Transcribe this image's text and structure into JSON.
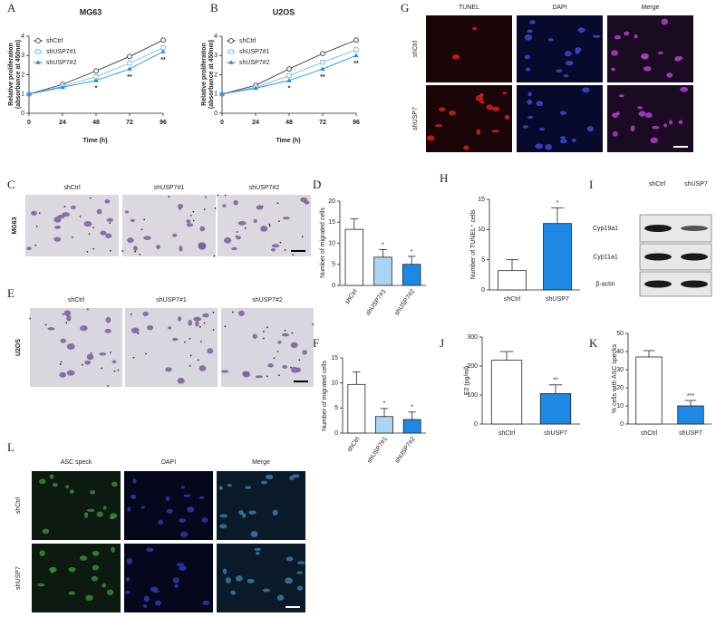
{
  "panel_letters": [
    "A",
    "B",
    "C",
    "D",
    "E",
    "F",
    "G",
    "H",
    "I",
    "J",
    "K",
    "L"
  ],
  "chart_data": [
    {
      "type": "line",
      "title": "MG63",
      "x": [
        0,
        24,
        48,
        72,
        96
      ],
      "xlim": [
        0,
        96
      ],
      "xticks": [
        0,
        24,
        48,
        72,
        96
      ],
      "ylim": [
        0,
        4
      ],
      "yticks": [
        0,
        1,
        2,
        3,
        4
      ],
      "x_label": "Time (h)",
      "y_label": [
        "Relative proliferation",
        "(absorbance at 450nm)"
      ],
      "series": [
        {
          "name": "shCtrl",
          "color": "#333333",
          "marker": "circle-open",
          "values": [
            1.0,
            1.5,
            2.2,
            2.95,
            3.8
          ]
        },
        {
          "name": "shUSP7#1",
          "color": "#7fb9e6",
          "marker": "square-open",
          "values": [
            1.0,
            1.4,
            1.9,
            2.6,
            3.4
          ]
        },
        {
          "name": "shUSP7#2",
          "color": "#1e88e5",
          "marker": "triangle",
          "values": [
            1.0,
            1.35,
            1.7,
            2.3,
            3.2
          ]
        }
      ],
      "significance": [
        null,
        null,
        "*",
        "**",
        "**"
      ]
    },
    {
      "type": "line",
      "title": "U2OS",
      "x": [
        0,
        24,
        48,
        72,
        96
      ],
      "xlim": [
        0,
        96
      ],
      "xticks": [
        0,
        24,
        48,
        72,
        96
      ],
      "ylim": [
        0,
        4
      ],
      "yticks": [
        0,
        1,
        2,
        3,
        4
      ],
      "x_label": "Time (h)",
      "y_label": [
        "Relative proliferation",
        "(absorbance at 450nm)"
      ],
      "series": [
        {
          "name": "shCtrl",
          "color": "#333333",
          "marker": "circle-open",
          "values": [
            1.0,
            1.45,
            2.3,
            3.1,
            3.8
          ]
        },
        {
          "name": "shUSP7#1",
          "color": "#7fb9e6",
          "marker": "square-open",
          "values": [
            1.0,
            1.35,
            1.95,
            2.65,
            3.3
          ]
        },
        {
          "name": "shUSP7#2",
          "color": "#1e88e5",
          "marker": "triangle",
          "values": [
            1.0,
            1.3,
            1.7,
            2.3,
            3.0
          ]
        }
      ],
      "significance": [
        null,
        null,
        "*",
        "**",
        "**"
      ]
    },
    {
      "type": "bar",
      "categories": [
        "shCtrl",
        "shUSP7#1",
        "shUSP7#2"
      ],
      "values": [
        13.3,
        6.7,
        5.0
      ],
      "errors": [
        2.5,
        1.8,
        1.9
      ],
      "colors": [
        "#ffffff",
        "#aad4f5",
        "#1e88e5"
      ],
      "ylim": [
        0,
        20
      ],
      "yticks": [
        0,
        5,
        10,
        15,
        20
      ],
      "y_label": "Number of migrated cells",
      "rotated_xticks": true,
      "significance": [
        null,
        "*",
        "*"
      ]
    },
    {
      "type": "bar",
      "categories": [
        "shCtrl",
        "shUSP7#1",
        "shUSP7#2"
      ],
      "values": [
        9.7,
        3.3,
        2.7
      ],
      "errors": [
        2.5,
        1.6,
        1.5
      ],
      "colors": [
        "#ffffff",
        "#aad4f5",
        "#1e88e5"
      ],
      "ylim": [
        0,
        15
      ],
      "yticks": [
        0,
        5,
        10,
        15
      ],
      "y_label": "Number of migrated cells",
      "rotated_xticks": true,
      "significance": [
        null,
        "*",
        "*"
      ]
    },
    {
      "type": "bar",
      "categories": [
        "shCtrl",
        "shUSP7"
      ],
      "values": [
        3.2,
        11.0
      ],
      "errors": [
        1.8,
        2.6
      ],
      "colors": [
        "#ffffff",
        "#1e88e5"
      ],
      "ylim": [
        0,
        15
      ],
      "yticks": [
        0,
        5,
        10,
        15
      ],
      "y_label": "Number of TUNEL⁺ cells",
      "rotated_xticks": false,
      "significance": [
        null,
        "*"
      ]
    },
    {
      "type": "bar",
      "categories": [
        "shCtrl",
        "shUSP7"
      ],
      "values": [
        220,
        105
      ],
      "errors": [
        30,
        30
      ],
      "colors": [
        "#ffffff",
        "#1e88e5"
      ],
      "ylim": [
        0,
        300
      ],
      "yticks": [
        0,
        100,
        200,
        300
      ],
      "y_label": "E2 (pg/ml)",
      "rotated_xticks": false,
      "significance": [
        null,
        "**"
      ]
    },
    {
      "type": "bar",
      "categories": [
        "shCtrl",
        "shUSP7"
      ],
      "values": [
        37,
        10
      ],
      "errors": [
        3.5,
        3
      ],
      "colors": [
        "#ffffff",
        "#1e88e5"
      ],
      "ylim": [
        0,
        50
      ],
      "yticks": [
        0,
        10,
        20,
        30,
        40,
        50
      ],
      "y_label": "% cells with ASC specks",
      "rotated_xticks": false,
      "significance": [
        null,
        "***"
      ]
    }
  ],
  "image_grids": [
    {
      "columns": [
        "shCtrl",
        "shUSP7#1",
        "shUSP7#2"
      ],
      "rows": [
        "MG63"
      ]
    },
    {
      "columns": [
        "shCtrl",
        "shUSP7#1",
        "shUSP7#2"
      ],
      "rows": [
        "U2OS"
      ]
    },
    {
      "columns": [
        "TUNEL",
        "DAPI",
        "Merge"
      ],
      "rows": [
        "shCtrl",
        "shUSP7"
      ]
    },
    {
      "columns": [
        "ASC speck",
        "DAPI",
        "Merge"
      ],
      "rows": [
        "shCtrl",
        "shUSP7"
      ]
    }
  ],
  "blot": {
    "columns": [
      "shCtrl",
      "shUSP7"
    ],
    "rows": [
      "Cyp19a1",
      "Cyp11a1",
      "β-actin"
    ]
  }
}
